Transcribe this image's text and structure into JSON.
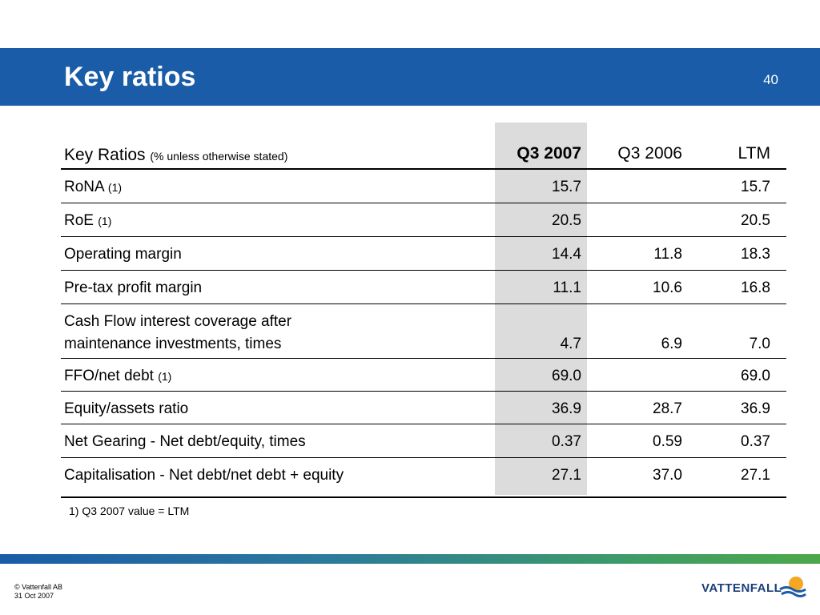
{
  "slide": {
    "title": "Key ratios",
    "number": "40"
  },
  "table": {
    "header": {
      "label": "Key Ratios",
      "label_note": "(% unless otherwise stated)",
      "columns": [
        "Q3 2007",
        "Q3 2006",
        "LTM"
      ]
    },
    "rows": [
      {
        "label": "RoNA",
        "note": "(1)",
        "q3_2007": "15.7",
        "q3_2006": "",
        "ltm": "15.7"
      },
      {
        "label": "RoE",
        "note": "(1)",
        "q3_2007": "20.5",
        "q3_2006": "",
        "ltm": "20.5"
      },
      {
        "label": "Operating margin",
        "note": "",
        "q3_2007": "14.4",
        "q3_2006": "11.8",
        "ltm": "18.3"
      },
      {
        "label": "Pre-tax profit margin",
        "note": "",
        "q3_2007": "11.1",
        "q3_2006": "10.6",
        "ltm": "16.8"
      },
      {
        "label": "Cash Flow interest coverage after",
        "label2": "maintenance investments, times",
        "note": "",
        "q3_2007": "4.7",
        "q3_2006": "6.9",
        "ltm": "7.0"
      },
      {
        "label": "FFO/net debt",
        "note": "(1)",
        "q3_2007": "69.0",
        "q3_2006": "",
        "ltm": "69.0"
      },
      {
        "label": "Equity/assets ratio",
        "note": "",
        "q3_2007": "36.9",
        "q3_2006": "28.7",
        "ltm": "36.9"
      },
      {
        "label": "Net Gearing - Net debt/equity, times",
        "note": "",
        "q3_2007": "0.37",
        "q3_2006": "0.59",
        "ltm": "0.37"
      },
      {
        "label": "Capitalisation - Net debt/net debt + equity",
        "note": "",
        "q3_2007": "27.1",
        "q3_2006": "37.0",
        "ltm": "27.1"
      }
    ]
  },
  "footnote": "1) Q3 2007 value = LTM",
  "footer": {
    "copyright": "© Vattenfall AB",
    "date": "31 Oct 2007",
    "logo_text": "VATTENFALL"
  },
  "colors": {
    "brand_blue": "#1a5ca8",
    "highlight_gray": "#dcdcdc"
  }
}
